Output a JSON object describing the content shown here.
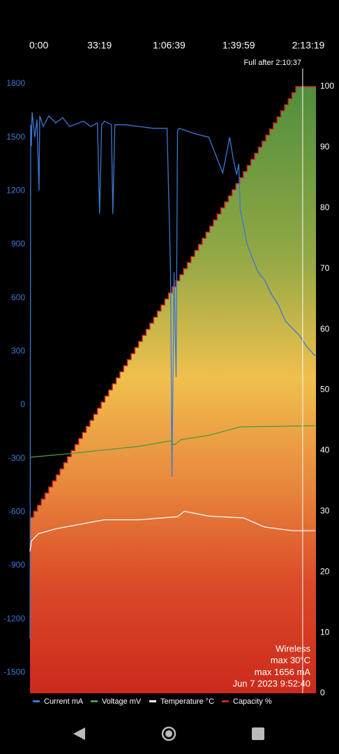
{
  "chart_data": {
    "type": "line",
    "xlim": [
      0,
      8220
    ],
    "xticks": [
      {
        "value": 0,
        "label": "0:00"
      },
      {
        "value": 1999,
        "label": "33:19"
      },
      {
        "value": 3999,
        "label": "1:06:39"
      },
      {
        "value": 5999,
        "label": "1:39:59"
      },
      {
        "value": 7999,
        "label": "2:13:19"
      }
    ],
    "ylim": [
      -1616,
      1784
    ],
    "yticks": [
      -1500,
      -1200,
      -900,
      -600,
      -300,
      0,
      300,
      600,
      900,
      1200,
      1500,
      1800
    ],
    "y2lim": [
      0,
      100
    ],
    "y2ticks": [
      0,
      10,
      20,
      30,
      40,
      50,
      60,
      70,
      80,
      90,
      100
    ],
    "marker": {
      "x": 7837,
      "label": "Full after 2:10:37"
    },
    "info": [
      "Wireless",
      "max 30°C",
      "max 1656 mA",
      "Jun 7 2023 9:52:40"
    ],
    "series": [
      {
        "name": "Current mA",
        "color": "#3a78d4",
        "x": [
          0,
          20,
          40,
          60,
          140,
          200,
          260,
          280,
          380,
          540,
          740,
          940,
          1140,
          1540,
          1740,
          1940,
          2000,
          2060,
          2140,
          2340,
          2380,
          2440,
          2740,
          3140,
          3540,
          3940,
          4040,
          4080,
          4140,
          4200,
          4240,
          4280,
          4440,
          4740,
          5140,
          5540,
          5740,
          5840,
          5940,
          6000,
          6040,
          6240,
          6540,
          6740,
          6940,
          7140,
          7340,
          7540,
          7740,
          7940,
          8200
        ],
        "values": [
          -1310,
          1570,
          1450,
          1640,
          1500,
          1600,
          1200,
          1620,
          1560,
          1620,
          1580,
          1610,
          1560,
          1590,
          1560,
          1580,
          1070,
          1570,
          1590,
          1570,
          1070,
          1570,
          1570,
          1560,
          1550,
          1550,
          743,
          -403,
          743,
          156,
          1530,
          1550,
          1540,
          1520,
          1500,
          1300,
          1500,
          1380,
          1290,
          1350,
          1100,
          900,
          750,
          700,
          620,
          560,
          470,
          430,
          390,
          330,
          274
        ]
      },
      {
        "name": "Voltage mV",
        "color": "#4c9a3c",
        "axis": "y2",
        "x": [
          0,
          1140,
          3140,
          4040,
          4140,
          4340,
          5140,
          6040,
          8200
        ],
        "values": [
          38.9,
          39.5,
          40.7,
          41.6,
          40.9,
          41.8,
          42.5,
          43.9,
          44.1
        ]
      },
      {
        "name": "Temperature °C",
        "color": "#ffffff",
        "axis": "y2",
        "x": [
          0,
          40,
          240,
          740,
          2140,
          3140,
          4240,
          4440,
          5140,
          6140,
          6740,
          7540,
          8200
        ],
        "values": [
          23.4,
          25.1,
          26.3,
          27.1,
          28.6,
          28.6,
          29.1,
          30,
          29.2,
          28.9,
          27.4,
          26.8,
          26.8
        ]
      },
      {
        "name": "Capacity %",
        "color": "#c8281e",
        "axis": "y2",
        "area": true,
        "x": [
          0,
          108,
          215,
          323,
          430,
          538,
          646,
          753,
          861,
          968,
          1076,
          1184,
          1291,
          1399,
          1506,
          1614,
          1722,
          1829,
          1937,
          2044,
          2152,
          2260,
          2367,
          2475,
          2582,
          2690,
          2798,
          2905,
          3013,
          3120,
          3228,
          3336,
          3443,
          3551,
          3658,
          3766,
          3874,
          3981,
          4089,
          4196,
          4304,
          4412,
          4519,
          4627,
          4734,
          4842,
          4950,
          5057,
          5165,
          5272,
          5380,
          5488,
          5595,
          5703,
          5810,
          5918,
          6026,
          6133,
          6241,
          6348,
          6456,
          6564,
          6671,
          6779,
          6886,
          6994,
          7102,
          7209,
          7317,
          7424,
          7532,
          7640
        ],
        "values": [
          29,
          30,
          31,
          32,
          33,
          34,
          35,
          36,
          37,
          38,
          39,
          40,
          41,
          42,
          43,
          44,
          45,
          46,
          47,
          48,
          49,
          50,
          51,
          52,
          53,
          54,
          55,
          56,
          57,
          58,
          59,
          60,
          61,
          62,
          63,
          64,
          65,
          66,
          67,
          68,
          69,
          70,
          71,
          72,
          73,
          74,
          75,
          76,
          77,
          78,
          79,
          80,
          81,
          82,
          83,
          84,
          85,
          86,
          87,
          88,
          89,
          90,
          91,
          92,
          93,
          94,
          95,
          96,
          97,
          98,
          99,
          100
        ]
      }
    ]
  }
}
